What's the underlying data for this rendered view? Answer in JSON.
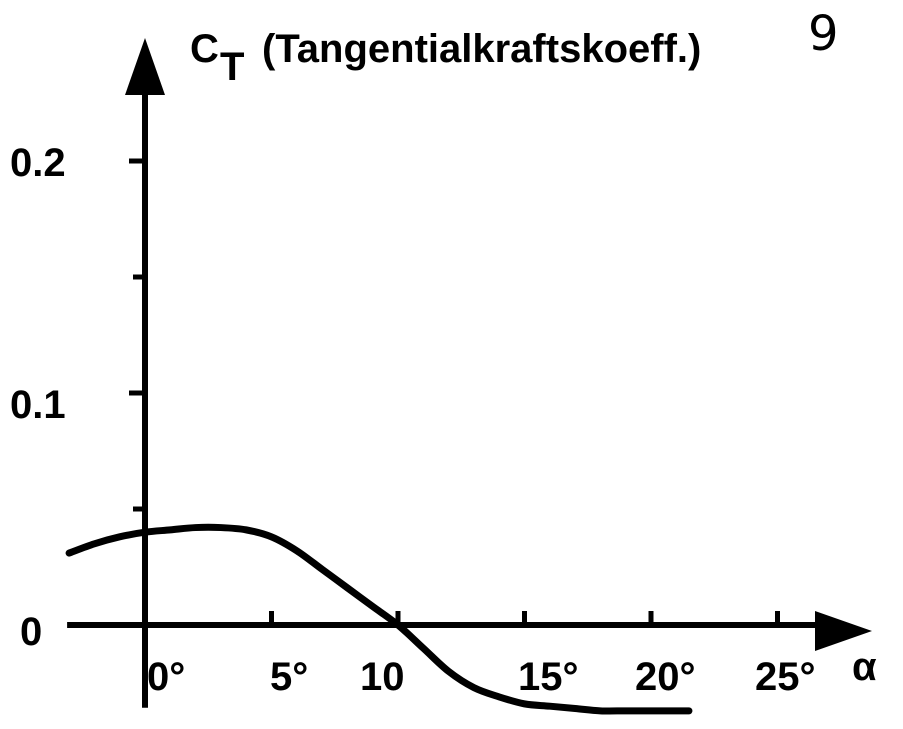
{
  "page_number": "9",
  "chart_data": {
    "type": "line",
    "title": "",
    "ylabel_symbol": "C",
    "ylabel_subscript": "T",
    "ylabel_text": "(Tangentialkraftskoeff.)",
    "xlabel": "α",
    "xlim": [
      -3,
      28
    ],
    "ylim": [
      -0.04,
      0.225
    ],
    "y_ticks": [
      {
        "value": 0,
        "label": "0"
      },
      {
        "value": 0.1,
        "label": "0.1"
      },
      {
        "value": 0.2,
        "label": "0.2"
      }
    ],
    "y_minor_ticks": [
      0.05,
      0.15
    ],
    "x_ticks": [
      {
        "value": 0,
        "label": "0°"
      },
      {
        "value": 5,
        "label": "5°"
      },
      {
        "value": 10,
        "label": "10"
      },
      {
        "value": 15,
        "label": "15°"
      },
      {
        "value": 20,
        "label": "20°"
      },
      {
        "value": 25,
        "label": "25°"
      }
    ],
    "grid": false,
    "series": [
      {
        "x": [
          -3,
          -2,
          -1,
          0,
          1,
          2,
          3,
          4,
          5,
          6,
          7,
          8,
          9,
          10,
          11,
          12,
          13,
          14,
          15,
          16,
          17,
          18,
          19,
          20,
          21.5
        ],
        "y": [
          0.031,
          0.035,
          0.038,
          0.04,
          0.041,
          0.042,
          0.042,
          0.041,
          0.038,
          0.032,
          0.024,
          0.016,
          0.008,
          0.0,
          -0.01,
          -0.02,
          -0.027,
          -0.031,
          -0.034,
          -0.035,
          -0.036,
          -0.037,
          -0.037,
          -0.037,
          -0.037
        ]
      }
    ]
  }
}
